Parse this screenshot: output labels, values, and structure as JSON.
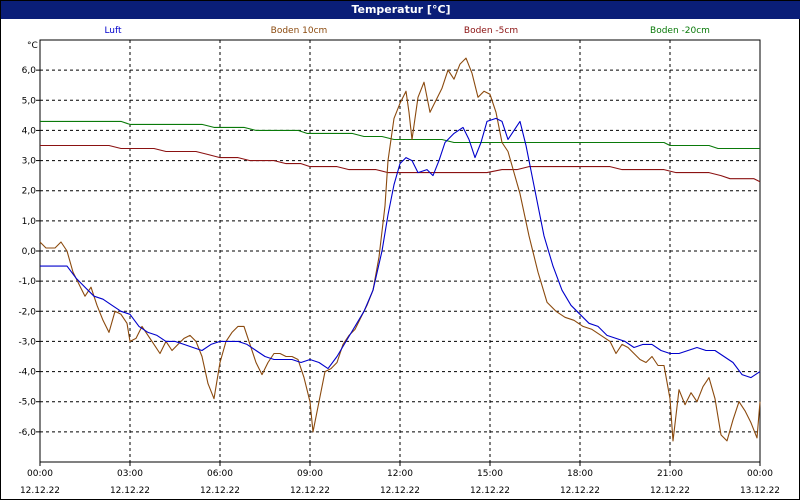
{
  "window": {
    "title": "Temperatur [°C]"
  },
  "chart_data": {
    "type": "line",
    "ylabel": "°C",
    "ylim": [
      -7,
      7
    ],
    "xlim": [
      0,
      24
    ],
    "grid": true,
    "legend_position": "top",
    "y_ticks": [
      {
        "v": 6,
        "label": "6,0"
      },
      {
        "v": 5,
        "label": "5,0"
      },
      {
        "v": 4,
        "label": "4,0"
      },
      {
        "v": 3,
        "label": "3,0"
      },
      {
        "v": 2,
        "label": "2,0"
      },
      {
        "v": 1,
        "label": "1,0"
      },
      {
        "v": 0,
        "label": "0,0"
      },
      {
        "v": -1,
        "label": "-1,0"
      },
      {
        "v": -2,
        "label": "-2,0"
      },
      {
        "v": -3,
        "label": "-3,0"
      },
      {
        "v": -4,
        "label": "-4,0"
      },
      {
        "v": -5,
        "label": "-5,0"
      },
      {
        "v": -6,
        "label": "-6,0"
      }
    ],
    "x_ticks": [
      {
        "h": 0,
        "time": "00:00",
        "date": "12.12.22"
      },
      {
        "h": 3,
        "time": "03:00",
        "date": "12.12.22"
      },
      {
        "h": 6,
        "time": "06:00",
        "date": "12.12.22"
      },
      {
        "h": 9,
        "time": "09:00",
        "date": "12.12.22"
      },
      {
        "h": 12,
        "time": "12:00",
        "date": "12.12.22"
      },
      {
        "h": 15,
        "time": "15:00",
        "date": "12.12.22"
      },
      {
        "h": 18,
        "time": "18:00",
        "date": "12.12.22"
      },
      {
        "h": 21,
        "time": "21:00",
        "date": "12.12.22"
      },
      {
        "h": 24,
        "time": "00:00",
        "date": "13.12.22"
      }
    ],
    "series": [
      {
        "name": "Luft",
        "color": "#0000cc",
        "points": [
          [
            0,
            -0.5
          ],
          [
            0.5,
            -0.5
          ],
          [
            0.9,
            -0.5
          ],
          [
            1.2,
            -0.9
          ],
          [
            1.5,
            -1.2
          ],
          [
            1.8,
            -1.5
          ],
          [
            2.1,
            -1.6
          ],
          [
            2.4,
            -1.8
          ],
          [
            2.7,
            -2.0
          ],
          [
            3.0,
            -2.1
          ],
          [
            3.3,
            -2.5
          ],
          [
            3.6,
            -2.7
          ],
          [
            3.9,
            -2.8
          ],
          [
            4.2,
            -3.0
          ],
          [
            4.5,
            -3.0
          ],
          [
            4.8,
            -3.1
          ],
          [
            5.1,
            -3.2
          ],
          [
            5.4,
            -3.3
          ],
          [
            5.7,
            -3.1
          ],
          [
            6.0,
            -3.0
          ],
          [
            6.3,
            -3.0
          ],
          [
            6.6,
            -3.0
          ],
          [
            6.9,
            -3.1
          ],
          [
            7.2,
            -3.3
          ],
          [
            7.5,
            -3.5
          ],
          [
            7.8,
            -3.6
          ],
          [
            8.1,
            -3.6
          ],
          [
            8.4,
            -3.6
          ],
          [
            8.7,
            -3.7
          ],
          [
            9.0,
            -3.6
          ],
          [
            9.3,
            -3.7
          ],
          [
            9.6,
            -3.9
          ],
          [
            9.9,
            -3.5
          ],
          [
            10.2,
            -3.0
          ],
          [
            10.5,
            -2.5
          ],
          [
            10.8,
            -2.0
          ],
          [
            11.1,
            -1.3
          ],
          [
            11.4,
            0.0
          ],
          [
            11.6,
            1.2
          ],
          [
            11.8,
            2.2
          ],
          [
            12.0,
            2.9
          ],
          [
            12.2,
            3.1
          ],
          [
            12.4,
            3.0
          ],
          [
            12.6,
            2.6
          ],
          [
            12.9,
            2.7
          ],
          [
            13.1,
            2.5
          ],
          [
            13.3,
            3.0
          ],
          [
            13.5,
            3.6
          ],
          [
            13.8,
            3.9
          ],
          [
            14.1,
            4.1
          ],
          [
            14.3,
            3.7
          ],
          [
            14.5,
            3.1
          ],
          [
            14.7,
            3.6
          ],
          [
            14.9,
            4.3
          ],
          [
            15.2,
            4.4
          ],
          [
            15.4,
            4.3
          ],
          [
            15.6,
            3.7
          ],
          [
            15.8,
            4.0
          ],
          [
            16.0,
            4.3
          ],
          [
            16.2,
            3.5
          ],
          [
            16.5,
            2.0
          ],
          [
            16.8,
            0.5
          ],
          [
            17.1,
            -0.5
          ],
          [
            17.4,
            -1.3
          ],
          [
            17.7,
            -1.8
          ],
          [
            18.0,
            -2.1
          ],
          [
            18.3,
            -2.4
          ],
          [
            18.6,
            -2.5
          ],
          [
            18.9,
            -2.8
          ],
          [
            19.2,
            -2.9
          ],
          [
            19.5,
            -3.0
          ],
          [
            19.8,
            -3.2
          ],
          [
            20.1,
            -3.1
          ],
          [
            20.4,
            -3.1
          ],
          [
            20.7,
            -3.3
          ],
          [
            21.0,
            -3.4
          ],
          [
            21.3,
            -3.4
          ],
          [
            21.6,
            -3.3
          ],
          [
            21.9,
            -3.2
          ],
          [
            22.2,
            -3.3
          ],
          [
            22.5,
            -3.3
          ],
          [
            22.8,
            -3.5
          ],
          [
            23.1,
            -3.7
          ],
          [
            23.4,
            -4.1
          ],
          [
            23.7,
            -4.2
          ],
          [
            24.0,
            -4.0
          ]
        ]
      },
      {
        "name": "Boden 10cm",
        "color": "#8b4a0e",
        "points": [
          [
            0,
            0.3
          ],
          [
            0.2,
            0.1
          ],
          [
            0.5,
            0.1
          ],
          [
            0.7,
            0.3
          ],
          [
            0.9,
            0.0
          ],
          [
            1.1,
            -0.7
          ],
          [
            1.3,
            -1.1
          ],
          [
            1.5,
            -1.5
          ],
          [
            1.7,
            -1.2
          ],
          [
            1.9,
            -1.8
          ],
          [
            2.1,
            -2.3
          ],
          [
            2.3,
            -2.7
          ],
          [
            2.5,
            -2.0
          ],
          [
            2.7,
            -2.1
          ],
          [
            2.9,
            -2.4
          ],
          [
            3.0,
            -3.0
          ],
          [
            3.2,
            -2.9
          ],
          [
            3.4,
            -2.5
          ],
          [
            3.6,
            -2.8
          ],
          [
            3.8,
            -3.1
          ],
          [
            4.0,
            -3.4
          ],
          [
            4.2,
            -3.0
          ],
          [
            4.4,
            -3.3
          ],
          [
            4.6,
            -3.1
          ],
          [
            4.8,
            -2.9
          ],
          [
            5.0,
            -2.8
          ],
          [
            5.2,
            -3.0
          ],
          [
            5.4,
            -3.5
          ],
          [
            5.6,
            -4.4
          ],
          [
            5.8,
            -4.9
          ],
          [
            6.0,
            -3.7
          ],
          [
            6.2,
            -3.0
          ],
          [
            6.4,
            -2.7
          ],
          [
            6.6,
            -2.5
          ],
          [
            6.8,
            -2.5
          ],
          [
            7.0,
            -3.1
          ],
          [
            7.2,
            -3.7
          ],
          [
            7.4,
            -4.1
          ],
          [
            7.6,
            -3.7
          ],
          [
            7.8,
            -3.4
          ],
          [
            8.0,
            -3.4
          ],
          [
            8.2,
            -3.5
          ],
          [
            8.4,
            -3.5
          ],
          [
            8.6,
            -3.6
          ],
          [
            8.8,
            -4.2
          ],
          [
            9.0,
            -5.0
          ],
          [
            9.1,
            -6.0
          ],
          [
            9.3,
            -5.0
          ],
          [
            9.5,
            -4.0
          ],
          [
            9.7,
            -3.9
          ],
          [
            9.9,
            -3.7
          ],
          [
            10.1,
            -3.1
          ],
          [
            10.3,
            -2.8
          ],
          [
            10.5,
            -2.6
          ],
          [
            10.7,
            -2.2
          ],
          [
            10.9,
            -1.8
          ],
          [
            11.1,
            -1.3
          ],
          [
            11.3,
            -0.2
          ],
          [
            11.5,
            1.5
          ],
          [
            11.6,
            3.0
          ],
          [
            11.8,
            4.4
          ],
          [
            12.0,
            4.9
          ],
          [
            12.2,
            5.3
          ],
          [
            12.3,
            4.6
          ],
          [
            12.4,
            3.7
          ],
          [
            12.6,
            5.1
          ],
          [
            12.8,
            5.6
          ],
          [
            13.0,
            4.6
          ],
          [
            13.2,
            5.0
          ],
          [
            13.4,
            5.4
          ],
          [
            13.6,
            6.0
          ],
          [
            13.8,
            5.7
          ],
          [
            14.0,
            6.2
          ],
          [
            14.2,
            6.4
          ],
          [
            14.4,
            5.9
          ],
          [
            14.6,
            5.1
          ],
          [
            14.8,
            5.3
          ],
          [
            15.0,
            5.2
          ],
          [
            15.2,
            4.6
          ],
          [
            15.4,
            3.6
          ],
          [
            15.6,
            3.3
          ],
          [
            15.8,
            2.6
          ],
          [
            16.0,
            1.9
          ],
          [
            16.3,
            0.5
          ],
          [
            16.6,
            -0.7
          ],
          [
            16.9,
            -1.7
          ],
          [
            17.2,
            -2.0
          ],
          [
            17.5,
            -2.2
          ],
          [
            17.8,
            -2.3
          ],
          [
            18.1,
            -2.5
          ],
          [
            18.4,
            -2.6
          ],
          [
            18.7,
            -2.8
          ],
          [
            19.0,
            -3.0
          ],
          [
            19.2,
            -3.4
          ],
          [
            19.4,
            -3.1
          ],
          [
            19.6,
            -3.2
          ],
          [
            19.8,
            -3.4
          ],
          [
            20.0,
            -3.6
          ],
          [
            20.2,
            -3.7
          ],
          [
            20.4,
            -3.5
          ],
          [
            20.6,
            -3.8
          ],
          [
            20.8,
            -3.8
          ],
          [
            21.0,
            -4.9
          ],
          [
            21.1,
            -6.3
          ],
          [
            21.3,
            -4.6
          ],
          [
            21.5,
            -5.1
          ],
          [
            21.7,
            -4.7
          ],
          [
            21.9,
            -5.0
          ],
          [
            22.1,
            -4.5
          ],
          [
            22.3,
            -4.2
          ],
          [
            22.5,
            -4.9
          ],
          [
            22.7,
            -6.1
          ],
          [
            22.9,
            -6.3
          ],
          [
            23.1,
            -5.6
          ],
          [
            23.3,
            -5.0
          ],
          [
            23.5,
            -5.3
          ],
          [
            23.7,
            -5.7
          ],
          [
            23.9,
            -6.2
          ],
          [
            24.0,
            -5.0
          ]
        ]
      },
      {
        "name": "Boden -5cm",
        "color": "#8b1212",
        "points": [
          [
            0,
            3.5
          ],
          [
            2.3,
            3.5
          ],
          [
            2.7,
            3.4
          ],
          [
            3.8,
            3.4
          ],
          [
            4.2,
            3.3
          ],
          [
            5.2,
            3.3
          ],
          [
            5.6,
            3.2
          ],
          [
            6.0,
            3.1
          ],
          [
            6.6,
            3.1
          ],
          [
            7.0,
            3.0
          ],
          [
            7.8,
            3.0
          ],
          [
            8.2,
            2.9
          ],
          [
            8.7,
            2.9
          ],
          [
            9.0,
            2.8
          ],
          [
            9.9,
            2.8
          ],
          [
            10.3,
            2.7
          ],
          [
            11.2,
            2.7
          ],
          [
            11.6,
            2.6
          ],
          [
            13.0,
            2.6
          ],
          [
            13.4,
            2.6
          ],
          [
            14.9,
            2.6
          ],
          [
            15.4,
            2.7
          ],
          [
            15.9,
            2.7
          ],
          [
            16.3,
            2.8
          ],
          [
            19.0,
            2.8
          ],
          [
            19.4,
            2.7
          ],
          [
            20.8,
            2.7
          ],
          [
            21.2,
            2.6
          ],
          [
            22.3,
            2.6
          ],
          [
            22.7,
            2.5
          ],
          [
            23.0,
            2.4
          ],
          [
            23.8,
            2.4
          ],
          [
            24.0,
            2.3
          ]
        ]
      },
      {
        "name": "Boden -20cm",
        "color": "#0a7a0a",
        "points": [
          [
            0,
            4.3
          ],
          [
            2.7,
            4.3
          ],
          [
            3.0,
            4.2
          ],
          [
            5.4,
            4.2
          ],
          [
            5.8,
            4.1
          ],
          [
            6.8,
            4.1
          ],
          [
            7.2,
            4.0
          ],
          [
            8.6,
            4.0
          ],
          [
            8.9,
            3.9
          ],
          [
            10.4,
            3.9
          ],
          [
            10.8,
            3.8
          ],
          [
            11.4,
            3.8
          ],
          [
            11.8,
            3.7
          ],
          [
            13.4,
            3.7
          ],
          [
            13.8,
            3.6
          ],
          [
            15.4,
            3.6
          ],
          [
            15.8,
            3.6
          ],
          [
            19.6,
            3.6
          ],
          [
            20.8,
            3.6
          ],
          [
            21.0,
            3.5
          ],
          [
            22.3,
            3.5
          ],
          [
            22.6,
            3.4
          ],
          [
            24.0,
            3.4
          ]
        ]
      }
    ]
  }
}
